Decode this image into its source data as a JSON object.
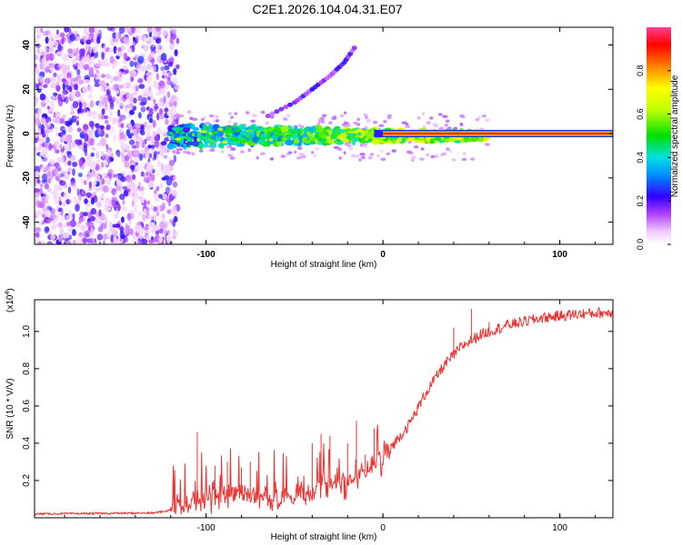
{
  "title": "C2E1.2026.104.04.31.E07",
  "chart_data": [
    {
      "type": "heatmap",
      "name": "spectrogram",
      "xlabel": "Height of straight line (km)",
      "ylabel": "Frequency (Hz)",
      "xlim": [
        -197,
        130
      ],
      "ylim": [
        -50,
        48
      ],
      "xticks": [
        -100,
        0,
        100
      ],
      "yticks": [
        -40,
        -20,
        0,
        20,
        40
      ],
      "colorbar": {
        "label": "Normalized spectral amplitude",
        "range": [
          0,
          1
        ],
        "ticks": [
          0.0,
          0.2,
          0.4,
          0.6,
          0.8
        ],
        "tick_labels": [
          "0.0",
          "0.2",
          "0.4",
          "0.6",
          "0.8"
        ]
      },
      "regions": [
        {
          "name": "broadband noise",
          "x_range": [
            -197,
            -120
          ],
          "y_range": [
            -50,
            48
          ],
          "amplitude": 0.1
        },
        {
          "name": "noisy carrier band",
          "x_range": [
            -120,
            0
          ],
          "y_center": -1,
          "y_halfwidth": 5,
          "amplitude": 0.3
        },
        {
          "name": "clean carrier line",
          "x_range": [
            0,
            130
          ],
          "y_center": 0,
          "amplitude": 0.95
        }
      ],
      "drift_trace": [
        [
          -65,
          8
        ],
        [
          -50,
          14
        ],
        [
          -40,
          20
        ],
        [
          -30,
          26
        ],
        [
          -22,
          32
        ],
        [
          -15,
          40
        ]
      ]
    },
    {
      "type": "line",
      "name": "snr",
      "xlabel": "Height of straight line (km)",
      "ylabel": "SNR (10 * V/V)",
      "scale_label": "(x10",
      "scale_exp": "4",
      "scale_close": ")",
      "xlim": [
        -197,
        130
      ],
      "ylim": [
        0,
        1.17
      ],
      "xticks": [
        -100,
        0,
        100
      ],
      "yticks": [
        0.2,
        0.4,
        0.6,
        0.8,
        1.0
      ],
      "ytick_labels": [
        "0.2",
        "0.4",
        "0.6",
        "0.8",
        "1.0"
      ],
      "color": "#ee3333",
      "trend": [
        [
          -197,
          0.02
        ],
        [
          -130,
          0.025
        ],
        [
          -120,
          0.04
        ],
        [
          -100,
          0.1
        ],
        [
          -80,
          0.12
        ],
        [
          -60,
          0.1
        ],
        [
          -40,
          0.14
        ],
        [
          -20,
          0.18
        ],
        [
          -5,
          0.28
        ],
        [
          5,
          0.38
        ],
        [
          15,
          0.5
        ],
        [
          25,
          0.68
        ],
        [
          35,
          0.82
        ],
        [
          45,
          0.92
        ],
        [
          55,
          0.98
        ],
        [
          70,
          1.03
        ],
        [
          90,
          1.07
        ],
        [
          110,
          1.09
        ],
        [
          130,
          1.1
        ]
      ],
      "spikes": [
        [
          -105,
          0.46
        ],
        [
          -95,
          0.28
        ],
        [
          -88,
          0.3
        ],
        [
          -80,
          0.27
        ],
        [
          -75,
          0.3
        ],
        [
          -40,
          0.4
        ],
        [
          -35,
          0.45
        ],
        [
          -30,
          0.44
        ],
        [
          -20,
          0.4
        ],
        [
          -15,
          0.52
        ],
        [
          -10,
          0.34
        ],
        [
          -5,
          0.48
        ],
        [
          40,
          1.02
        ],
        [
          50,
          1.12
        ],
        [
          60,
          1.05
        ]
      ]
    }
  ]
}
